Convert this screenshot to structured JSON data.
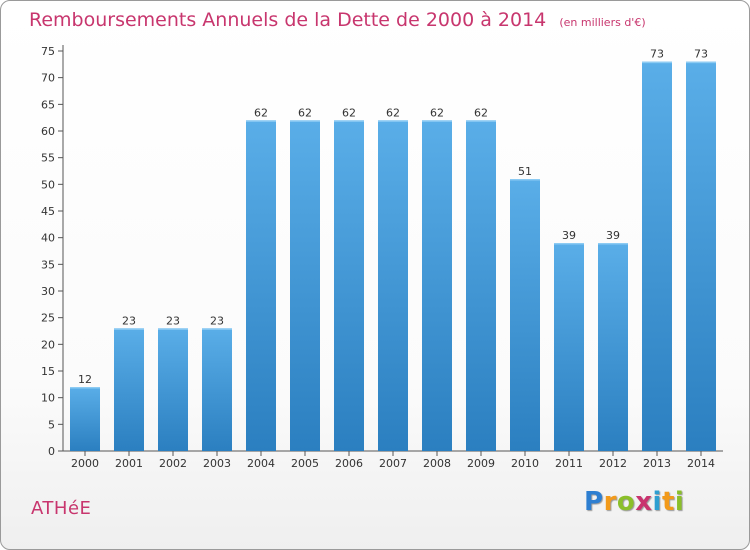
{
  "title": "Remboursements Annuels de la Dette de 2000 à 2014",
  "unit": "(en milliers d'€)",
  "place": "ATHéE",
  "brand": {
    "letters": [
      "P",
      "r",
      "o",
      "x",
      "i",
      "t",
      "i"
    ],
    "colors": [
      "#2e7fd1",
      "#f29a1a",
      "#8bbf2a",
      "#c9336e",
      "#2e9fd1",
      "#f29a1a",
      "#8bbf2a"
    ]
  },
  "colors": {
    "bar_top": "#5aaee8",
    "bar_bottom": "#2b7fc0",
    "text": "#c8366e"
  },
  "chart_data": {
    "type": "bar",
    "categories": [
      "2000",
      "2001",
      "2002",
      "2003",
      "2004",
      "2005",
      "2006",
      "2007",
      "2008",
      "2009",
      "2010",
      "2011",
      "2012",
      "2013",
      "2014"
    ],
    "values": [
      12,
      23,
      23,
      23,
      62,
      62,
      62,
      62,
      62,
      62,
      51,
      39,
      39,
      73,
      73
    ],
    "ylim": [
      0,
      75
    ],
    "yticks": [
      0,
      5,
      10,
      15,
      20,
      25,
      30,
      35,
      40,
      45,
      50,
      55,
      60,
      65,
      70,
      75
    ],
    "grid": false,
    "data_labels": true
  }
}
